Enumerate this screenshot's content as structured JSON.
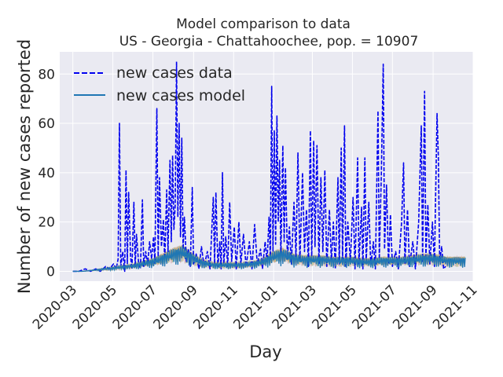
{
  "chart_data": {
    "type": "line",
    "title": "Model comparison to data",
    "subtitle": "US - Georgia - Chattahoochee, pop. = 10907",
    "xlabel": "Day",
    "ylabel": "Number of new cases reported",
    "x_range": [
      "2020-02-10",
      "2021-11-01"
    ],
    "ylim": [
      -4,
      89
    ],
    "grid": true,
    "background": "#eaeaf2",
    "legend_position": "top-left",
    "x_ticks": [
      "2020-03",
      "2020-05",
      "2020-07",
      "2020-09",
      "2020-11",
      "2021-01",
      "2021-03",
      "2021-05",
      "2021-07",
      "2021-09",
      "2021-11"
    ],
    "x_tick_dates": [
      "2020-03-01",
      "2020-05-01",
      "2020-07-01",
      "2020-09-01",
      "2020-11-01",
      "2021-01-01",
      "2021-03-01",
      "2021-05-01",
      "2021-07-01",
      "2021-09-01",
      "2021-11-01"
    ],
    "y_ticks": [
      0,
      20,
      40,
      60,
      80
    ],
    "y_tick_labels": [
      "0",
      "20",
      "40",
      "60",
      "80"
    ],
    "series": [
      {
        "name": "new cases data",
        "style": "dashed",
        "color": "#0000ee",
        "points": [
          [
            "2020-03-01",
            0
          ],
          [
            "2020-03-10",
            0
          ],
          [
            "2020-03-20",
            1
          ],
          [
            "2020-03-28",
            0
          ],
          [
            "2020-04-05",
            1
          ],
          [
            "2020-04-12",
            0
          ],
          [
            "2020-04-20",
            2
          ],
          [
            "2020-04-26",
            1
          ],
          [
            "2020-05-02",
            3
          ],
          [
            "2020-05-06",
            1
          ],
          [
            "2020-05-09",
            5
          ],
          [
            "2020-05-11",
            60
          ],
          [
            "2020-05-13",
            2
          ],
          [
            "2020-05-16",
            8
          ],
          [
            "2020-05-19",
            0
          ],
          [
            "2020-05-21",
            41
          ],
          [
            "2020-05-23",
            3
          ],
          [
            "2020-05-25",
            32
          ],
          [
            "2020-05-28",
            6
          ],
          [
            "2020-05-30",
            1
          ],
          [
            "2020-06-02",
            28
          ],
          [
            "2020-06-04",
            2
          ],
          [
            "2020-06-06",
            15
          ],
          [
            "2020-06-09",
            4
          ],
          [
            "2020-06-12",
            1
          ],
          [
            "2020-06-15",
            29
          ],
          [
            "2020-06-17",
            2
          ],
          [
            "2020-06-20",
            8
          ],
          [
            "2020-06-23",
            3
          ],
          [
            "2020-06-26",
            12
          ],
          [
            "2020-06-29",
            5
          ],
          [
            "2020-07-02",
            14
          ],
          [
            "2020-07-04",
            3
          ],
          [
            "2020-07-07",
            66
          ],
          [
            "2020-07-09",
            6
          ],
          [
            "2020-07-11",
            38
          ],
          [
            "2020-07-14",
            10
          ],
          [
            "2020-07-17",
            21
          ],
          [
            "2020-07-19",
            4
          ],
          [
            "2020-07-22",
            33
          ],
          [
            "2020-07-24",
            8
          ],
          [
            "2020-07-27",
            45
          ],
          [
            "2020-07-29",
            12
          ],
          [
            "2020-07-31",
            47
          ],
          [
            "2020-08-02",
            17
          ],
          [
            "2020-08-04",
            27
          ],
          [
            "2020-08-06",
            85
          ],
          [
            "2020-08-08",
            22
          ],
          [
            "2020-08-10",
            60
          ],
          [
            "2020-08-12",
            14
          ],
          [
            "2020-08-14",
            54
          ],
          [
            "2020-08-16",
            9
          ],
          [
            "2020-08-18",
            22
          ],
          [
            "2020-08-21",
            4
          ],
          [
            "2020-08-24",
            9
          ],
          [
            "2020-08-27",
            2
          ],
          [
            "2020-08-30",
            34
          ],
          [
            "2020-09-01",
            3
          ],
          [
            "2020-09-05",
            7
          ],
          [
            "2020-09-09",
            1
          ],
          [
            "2020-09-13",
            10
          ],
          [
            "2020-09-17",
            2
          ],
          [
            "2020-09-22",
            8
          ],
          [
            "2020-09-26",
            1
          ],
          [
            "2020-10-01",
            30
          ],
          [
            "2020-10-03",
            3
          ],
          [
            "2020-10-05",
            32
          ],
          [
            "2020-10-08",
            2
          ],
          [
            "2020-10-11",
            12
          ],
          [
            "2020-10-13",
            1
          ],
          [
            "2020-10-15",
            40
          ],
          [
            "2020-10-17",
            3
          ],
          [
            "2020-10-20",
            14
          ],
          [
            "2020-10-23",
            2
          ],
          [
            "2020-10-26",
            28
          ],
          [
            "2020-10-29",
            4
          ],
          [
            "2020-11-02",
            18
          ],
          [
            "2020-11-05",
            1
          ],
          [
            "2020-11-09",
            20
          ],
          [
            "2020-11-12",
            3
          ],
          [
            "2020-11-16",
            15
          ],
          [
            "2020-11-20",
            2
          ],
          [
            "2020-11-25",
            12
          ],
          [
            "2020-11-29",
            1
          ],
          [
            "2020-12-03",
            19
          ],
          [
            "2020-12-07",
            3
          ],
          [
            "2020-12-12",
            9
          ],
          [
            "2020-12-15",
            1
          ],
          [
            "2020-12-19",
            12
          ],
          [
            "2020-12-22",
            4
          ],
          [
            "2020-12-25",
            22
          ],
          [
            "2020-12-27",
            5
          ],
          [
            "2020-12-29",
            75
          ],
          [
            "2020-12-31",
            8
          ],
          [
            "2021-01-02",
            57
          ],
          [
            "2021-01-04",
            11
          ],
          [
            "2021-01-06",
            63
          ],
          [
            "2021-01-08",
            20
          ],
          [
            "2021-01-10",
            45
          ],
          [
            "2021-01-12",
            7
          ],
          [
            "2021-01-15",
            51
          ],
          [
            "2021-01-17",
            12
          ],
          [
            "2021-01-19",
            42
          ],
          [
            "2021-01-22",
            5
          ],
          [
            "2021-01-25",
            18
          ],
          [
            "2021-01-28",
            3
          ],
          [
            "2021-02-01",
            28
          ],
          [
            "2021-02-04",
            6
          ],
          [
            "2021-02-07",
            48
          ],
          [
            "2021-02-10",
            4
          ],
          [
            "2021-02-14",
            40
          ],
          [
            "2021-02-17",
            8
          ],
          [
            "2021-02-20",
            25
          ],
          [
            "2021-02-23",
            2
          ],
          [
            "2021-02-26",
            57
          ],
          [
            "2021-02-28",
            5
          ],
          [
            "2021-03-03",
            53
          ],
          [
            "2021-03-05",
            10
          ],
          [
            "2021-03-08",
            51
          ],
          [
            "2021-03-11",
            3
          ],
          [
            "2021-03-14",
            38
          ],
          [
            "2021-03-17",
            8
          ],
          [
            "2021-03-20",
            41
          ],
          [
            "2021-03-23",
            2
          ],
          [
            "2021-03-27",
            25
          ],
          [
            "2021-03-30",
            4
          ],
          [
            "2021-04-02",
            20
          ],
          [
            "2021-04-05",
            1
          ],
          [
            "2021-04-09",
            38
          ],
          [
            "2021-04-11",
            3
          ],
          [
            "2021-04-14",
            50
          ],
          [
            "2021-04-16",
            5
          ],
          [
            "2021-04-19",
            59
          ],
          [
            "2021-04-21",
            2
          ],
          [
            "2021-04-24",
            20
          ],
          [
            "2021-04-28",
            4
          ],
          [
            "2021-05-02",
            30
          ],
          [
            "2021-05-05",
            1
          ],
          [
            "2021-05-09",
            46
          ],
          [
            "2021-05-11",
            3
          ],
          [
            "2021-05-15",
            26
          ],
          [
            "2021-05-17",
            1
          ],
          [
            "2021-05-20",
            46
          ],
          [
            "2021-05-22",
            4
          ],
          [
            "2021-05-26",
            28
          ],
          [
            "2021-05-29",
            2
          ],
          [
            "2021-06-02",
            12
          ],
          [
            "2021-06-05",
            1
          ],
          [
            "2021-06-09",
            65
          ],
          [
            "2021-06-11",
            5
          ],
          [
            "2021-06-14",
            38
          ],
          [
            "2021-06-17",
            84
          ],
          [
            "2021-06-19",
            9
          ],
          [
            "2021-06-22",
            35
          ],
          [
            "2021-06-25",
            3
          ],
          [
            "2021-06-28",
            23
          ],
          [
            "2021-07-01",
            2
          ],
          [
            "2021-07-06",
            8
          ],
          [
            "2021-07-10",
            1
          ],
          [
            "2021-07-15",
            20
          ],
          [
            "2021-07-18",
            44
          ],
          [
            "2021-07-20",
            3
          ],
          [
            "2021-07-24",
            25
          ],
          [
            "2021-07-27",
            2
          ],
          [
            "2021-08-01",
            12
          ],
          [
            "2021-08-05",
            1
          ],
          [
            "2021-08-10",
            20
          ],
          [
            "2021-08-14",
            59
          ],
          [
            "2021-08-16",
            4
          ],
          [
            "2021-08-19",
            73
          ],
          [
            "2021-08-21",
            6
          ],
          [
            "2021-08-24",
            27
          ],
          [
            "2021-08-27",
            3
          ],
          [
            "2021-08-31",
            20
          ],
          [
            "2021-09-03",
            2
          ],
          [
            "2021-09-07",
            64
          ],
          [
            "2021-09-09",
            46
          ],
          [
            "2021-09-11",
            4
          ],
          [
            "2021-09-14",
            10
          ],
          [
            "2021-09-17",
            1
          ],
          [
            "2021-09-20",
            2
          ]
        ]
      },
      {
        "name": "new cases model",
        "style": "solid",
        "color": "#1f77b4",
        "points": [
          [
            "2020-03-01",
            0
          ],
          [
            "2020-03-15",
            0
          ],
          [
            "2020-04-01",
            0.5
          ],
          [
            "2020-04-15",
            1
          ],
          [
            "2020-05-01",
            1.5
          ],
          [
            "2020-05-15",
            2
          ],
          [
            "2020-06-01",
            2.5
          ],
          [
            "2020-06-15",
            3.5
          ],
          [
            "2020-07-01",
            4.5
          ],
          [
            "2020-07-15",
            6
          ],
          [
            "2020-08-01",
            8
          ],
          [
            "2020-08-15",
            9
          ],
          [
            "2020-09-01",
            6
          ],
          [
            "2020-09-15",
            4
          ],
          [
            "2020-10-01",
            3
          ],
          [
            "2020-10-15",
            3
          ],
          [
            "2020-11-01",
            3
          ],
          [
            "2020-11-15",
            3
          ],
          [
            "2020-12-01",
            3.5
          ],
          [
            "2020-12-15",
            4.5
          ],
          [
            "2021-01-01",
            7
          ],
          [
            "2021-01-15",
            8
          ],
          [
            "2021-02-01",
            6
          ],
          [
            "2021-02-15",
            5.5
          ],
          [
            "2021-03-01",
            5.5
          ],
          [
            "2021-03-15",
            5.5
          ],
          [
            "2021-04-01",
            5
          ],
          [
            "2021-04-15",
            5
          ],
          [
            "2021-05-01",
            5
          ],
          [
            "2021-05-15",
            4.5
          ],
          [
            "2021-06-01",
            4.5
          ],
          [
            "2021-06-15",
            5
          ],
          [
            "2021-07-01",
            5
          ],
          [
            "2021-07-15",
            5
          ],
          [
            "2021-08-01",
            5.5
          ],
          [
            "2021-08-15",
            6
          ],
          [
            "2021-09-01",
            6
          ],
          [
            "2021-09-15",
            5.5
          ],
          [
            "2021-09-20",
            5
          ]
        ]
      }
    ]
  }
}
